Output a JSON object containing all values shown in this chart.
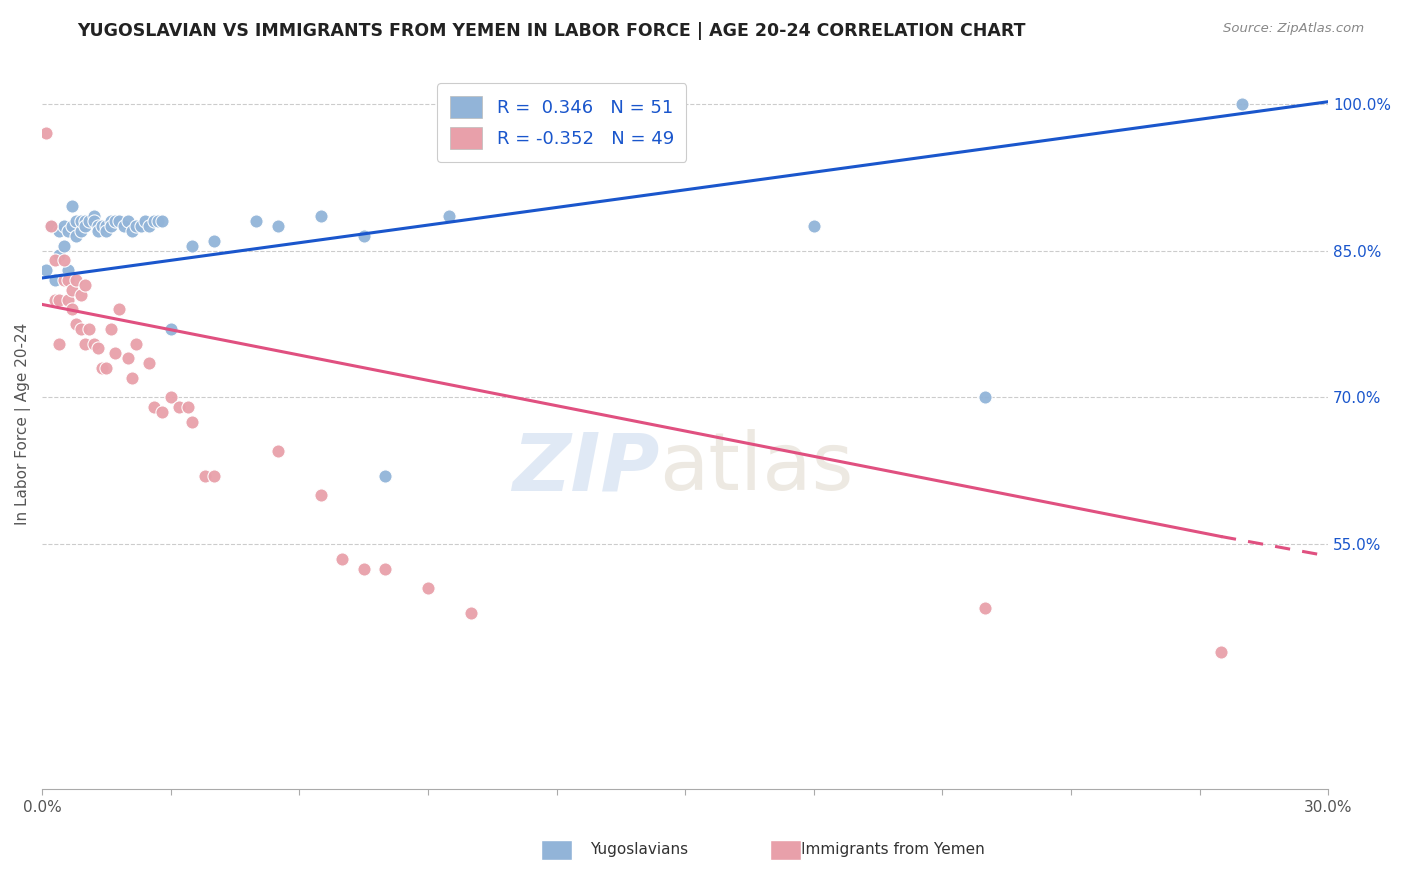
{
  "title": "YUGOSLAVIAN VS IMMIGRANTS FROM YEMEN IN LABOR FORCE | AGE 20-24 CORRELATION CHART",
  "source": "Source: ZipAtlas.com",
  "ylabel": "In Labor Force | Age 20-24",
  "yaxis_labels": [
    "100.0%",
    "85.0%",
    "70.0%",
    "55.0%"
  ],
  "yaxis_values": [
    1.0,
    0.85,
    0.7,
    0.55
  ],
  "xmin": 0.0,
  "xmax": 0.3,
  "ymin": 0.3,
  "ymax": 1.045,
  "color_blue": "#92b4d8",
  "color_pink": "#e8a0aa",
  "trendline_blue": "#1a56cc",
  "trendline_pink": "#e05080",
  "blue_trend_x0": 0.0,
  "blue_trend_y0": 0.822,
  "blue_trend_x1": 0.3,
  "blue_trend_y1": 1.002,
  "pink_trend_x0": 0.0,
  "pink_trend_y0": 0.795,
  "pink_trend_solid_x1": 0.275,
  "pink_trend_solid_y1": 0.558,
  "pink_trend_dash_x1": 0.3,
  "pink_trend_dash_y1": 0.538,
  "blue_scatter_x": [
    0.001,
    0.002,
    0.003,
    0.004,
    0.004,
    0.005,
    0.005,
    0.006,
    0.006,
    0.007,
    0.007,
    0.008,
    0.008,
    0.009,
    0.009,
    0.01,
    0.01,
    0.011,
    0.012,
    0.012,
    0.013,
    0.013,
    0.014,
    0.015,
    0.015,
    0.016,
    0.016,
    0.017,
    0.018,
    0.019,
    0.02,
    0.021,
    0.022,
    0.023,
    0.024,
    0.025,
    0.026,
    0.027,
    0.028,
    0.03,
    0.035,
    0.04,
    0.05,
    0.055,
    0.065,
    0.075,
    0.08,
    0.095,
    0.18,
    0.22,
    0.28
  ],
  "blue_scatter_y": [
    0.83,
    0.875,
    0.82,
    0.845,
    0.87,
    0.855,
    0.875,
    0.83,
    0.87,
    0.875,
    0.895,
    0.865,
    0.88,
    0.87,
    0.88,
    0.88,
    0.875,
    0.88,
    0.885,
    0.88,
    0.875,
    0.87,
    0.875,
    0.875,
    0.87,
    0.88,
    0.875,
    0.88,
    0.88,
    0.875,
    0.88,
    0.87,
    0.875,
    0.875,
    0.88,
    0.875,
    0.88,
    0.88,
    0.88,
    0.77,
    0.855,
    0.86,
    0.88,
    0.875,
    0.885,
    0.865,
    0.62,
    0.885,
    0.875,
    0.7,
    1.0
  ],
  "pink_scatter_x": [
    0.001,
    0.002,
    0.003,
    0.003,
    0.004,
    0.004,
    0.005,
    0.005,
    0.006,
    0.006,
    0.007,
    0.007,
    0.008,
    0.008,
    0.009,
    0.009,
    0.01,
    0.01,
    0.011,
    0.012,
    0.013,
    0.014,
    0.015,
    0.016,
    0.017,
    0.018,
    0.02,
    0.021,
    0.022,
    0.025,
    0.026,
    0.028,
    0.03,
    0.032,
    0.034,
    0.035,
    0.038,
    0.04,
    0.055,
    0.065,
    0.07,
    0.075,
    0.08,
    0.09,
    0.1,
    0.22,
    0.275
  ],
  "pink_scatter_y": [
    0.97,
    0.875,
    0.84,
    0.8,
    0.8,
    0.755,
    0.84,
    0.82,
    0.8,
    0.82,
    0.81,
    0.79,
    0.82,
    0.775,
    0.805,
    0.77,
    0.815,
    0.755,
    0.77,
    0.755,
    0.75,
    0.73,
    0.73,
    0.77,
    0.745,
    0.79,
    0.74,
    0.72,
    0.755,
    0.735,
    0.69,
    0.685,
    0.7,
    0.69,
    0.69,
    0.675,
    0.62,
    0.62,
    0.645,
    0.6,
    0.535,
    0.525,
    0.525,
    0.505,
    0.48,
    0.485,
    0.44
  ]
}
